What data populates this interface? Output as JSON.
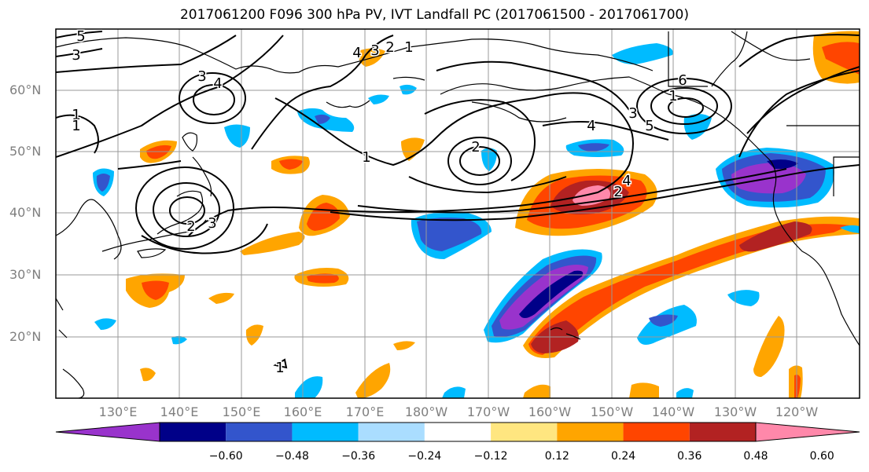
{
  "title": "2017061200 F096 300 hPa PV, IVT Landfall PC (2017061500 - 2017061700)",
  "lat_labels": [
    "60°N",
    "50°N",
    "40°N",
    "30°N",
    "20°N"
  ],
  "lon_labels": [
    "130°E",
    "140°E",
    "150°E",
    "160°E",
    "170°E",
    "180°W",
    "170°W",
    "160°W",
    "150°W",
    "140°W",
    "130°W",
    "120°W"
  ],
  "colorbar": {
    "ticks": [
      "−0.60",
      "−0.48",
      "−0.36",
      "−0.24",
      "−0.12",
      "0.12",
      "0.24",
      "0.36",
      "0.48",
      "0.60"
    ],
    "colors": [
      "#9933cc",
      "#000088",
      "#3355cc",
      "#00bbff",
      "#aaddff",
      "#ffffff",
      "#ffe680",
      "#ffa500",
      "#ff4500",
      "#b22222",
      "#ff88aa"
    ]
  },
  "contour_labels": [
    "5",
    "3",
    "3",
    "4",
    "1",
    "1",
    "4",
    "3",
    "2",
    "1",
    "1",
    "2",
    "4",
    "2",
    "4",
    "3",
    "5",
    "6",
    "1",
    "2",
    "3",
    "1"
  ]
}
